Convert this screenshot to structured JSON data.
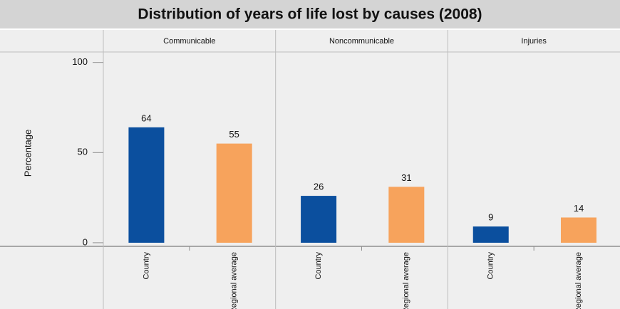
{
  "chart_data": {
    "type": "bar",
    "title": "Distribution of years of life lost by causes (2008)",
    "ylabel": "Percentage",
    "categories": [
      "Country",
      "Regional average"
    ],
    "colors": [
      "#0b4f9e",
      "#f7a35c"
    ],
    "panels": [
      {
        "name": "Communicable",
        "values": [
          64,
          55
        ]
      },
      {
        "name": "Noncommunicable",
        "values": [
          26,
          31
        ]
      },
      {
        "name": "Injuries",
        "values": [
          9,
          14
        ]
      }
    ],
    "ylim": [
      -2,
      105
    ],
    "yticks": [
      0,
      50,
      100
    ]
  }
}
